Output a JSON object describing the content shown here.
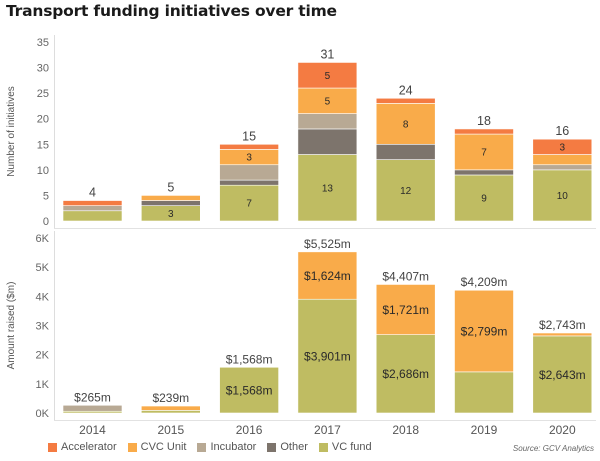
{
  "title": "Transport funding initiatives over time",
  "source": "Source: GCV Analytics",
  "colors": {
    "Accelerator": "#f47b42",
    "CVC Unit": "#f9ab4a",
    "Incubator": "#b8a994",
    "Other": "#7d746c",
    "VC fund": "#bfbc62"
  },
  "chart_data": [
    {
      "type": "bar",
      "stacked": true,
      "title": "Transport funding initiatives over time",
      "ylabel": "Number of initiatives",
      "xlabel": "",
      "ylim": [
        0,
        35
      ],
      "yticks": [
        0,
        5,
        10,
        15,
        20,
        25,
        30,
        35
      ],
      "ytick_labels": [
        "0",
        "5",
        "10",
        "15",
        "20",
        "25",
        "30",
        "35"
      ],
      "categories": [
        "2014",
        "2015",
        "2016",
        "2017",
        "2018",
        "2019",
        "2020"
      ],
      "series": [
        {
          "name": "VC fund",
          "values": [
            2,
            3,
            7,
            13,
            12,
            9,
            10
          ]
        },
        {
          "name": "Other",
          "values": [
            0,
            1,
            1,
            5,
            3,
            1,
            0
          ]
        },
        {
          "name": "Incubator",
          "values": [
            1,
            0,
            3,
            3,
            0,
            0,
            1
          ]
        },
        {
          "name": "CVC Unit",
          "values": [
            0,
            1,
            3,
            5,
            8,
            7,
            2
          ]
        },
        {
          "name": "Accelerator",
          "values": [
            1,
            0,
            1,
            5,
            1,
            1,
            3
          ]
        }
      ],
      "segment_labels": {
        "VC fund": [
          "",
          "3",
          "7",
          "13",
          "12",
          "9",
          "10"
        ],
        "Other": [
          "",
          "",
          "",
          "",
          "",
          "",
          ""
        ],
        "Incubator": [
          "",
          "",
          "",
          "",
          "",
          "",
          ""
        ],
        "CVC Unit": [
          "",
          "",
          "3",
          "5",
          "8",
          "7",
          ""
        ],
        "Accelerator": [
          "",
          "",
          "",
          "5",
          "",
          "",
          "3"
        ]
      },
      "totals": [
        4,
        5,
        15,
        31,
        24,
        18,
        16
      ],
      "total_labels": [
        "4",
        "5",
        "15",
        "31",
        "24",
        "18",
        "16"
      ],
      "grid": false
    },
    {
      "type": "bar",
      "stacked": true,
      "ylabel": "Amount raised ($m)",
      "xlabel": "",
      "ylim": [
        0,
        6000
      ],
      "yticks": [
        0,
        1000,
        2000,
        3000,
        4000,
        5000,
        6000
      ],
      "ytick_labels": [
        "0K",
        "1K",
        "2K",
        "3K",
        "4K",
        "5K",
        "6K"
      ],
      "categories": [
        "2014",
        "2015",
        "2016",
        "2017",
        "2018",
        "2019",
        "2020"
      ],
      "series": [
        {
          "name": "VC fund",
          "values": [
            60,
            90,
            1568,
            3901,
            2686,
            1410,
            2643
          ]
        },
        {
          "name": "Other",
          "values": [
            0,
            0,
            0,
            0,
            0,
            0,
            0
          ]
        },
        {
          "name": "Incubator",
          "values": [
            205,
            0,
            0,
            0,
            0,
            0,
            0
          ]
        },
        {
          "name": "CVC Unit",
          "values": [
            0,
            149,
            0,
            1624,
            1721,
            2799,
            100
          ]
        },
        {
          "name": "Accelerator",
          "values": [
            0,
            0,
            0,
            0,
            0,
            0,
            0
          ]
        }
      ],
      "segment_labels": {
        "VC fund": [
          "",
          "",
          "$1,568m",
          "$3,901m",
          "$2,686m",
          "",
          "$2,643m"
        ],
        "Other": [
          "",
          "",
          "",
          "",
          "",
          "",
          ""
        ],
        "Incubator": [
          "",
          "",
          "",
          "",
          "",
          "",
          ""
        ],
        "CVC Unit": [
          "",
          "",
          "",
          "$1,624m",
          "$1,721m",
          "$2,799m",
          ""
        ],
        "Accelerator": [
          "",
          "",
          "",
          "",
          "",
          "",
          ""
        ]
      },
      "totals": [
        265,
        239,
        1568,
        5525,
        4407,
        4209,
        2743
      ],
      "total_labels": [
        "$265m",
        "$239m",
        "$1,568m",
        "$5,525m",
        "$4,407m",
        "$4,209m",
        "$2,743m"
      ],
      "grid": false
    }
  ],
  "legend": {
    "position": "bottom-left",
    "items": [
      "Accelerator",
      "CVC Unit",
      "Incubator",
      "Other",
      "VC fund"
    ]
  }
}
